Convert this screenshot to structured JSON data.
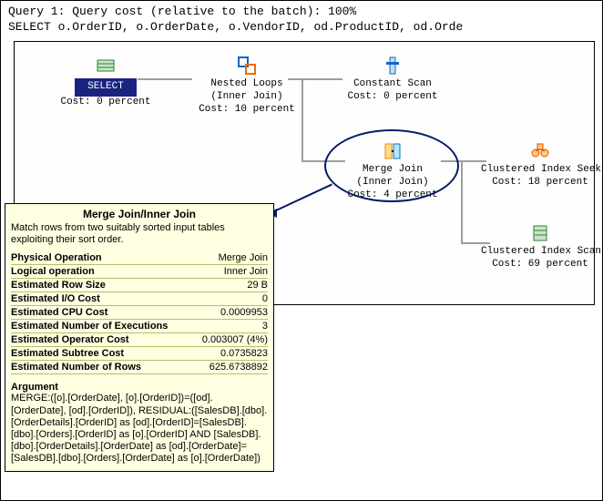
{
  "header": {
    "line1": "Query 1: Query cost (relative to the batch): 100%",
    "line2": "SELECT o.OrderID, o.OrderDate, o.VendorID, od.ProductID, od.Orde"
  },
  "plan": {
    "select": {
      "label": "SELECT",
      "cost": "Cost: 0 percent"
    },
    "nested_loops": {
      "label": "Nested Loops",
      "sub": "(Inner Join)",
      "cost": "Cost: 10 percent"
    },
    "constant_scan": {
      "label": "Constant Scan",
      "cost": "Cost: 0 percent"
    },
    "merge_join": {
      "label": "Merge Join",
      "sub": "(Inner Join)",
      "cost": "Cost: 4 percent"
    },
    "cis_seek": {
      "label": "Clustered Index Seek",
      "cost": "Cost: 18 percent"
    },
    "cis_scan": {
      "label": "Clustered Index Scan",
      "cost": "Cost: 69 percent"
    },
    "connector_color": "#9e9e9e",
    "ellipse_color": "#001a66"
  },
  "tooltip": {
    "title": "Merge Join/Inner Join",
    "description": "Match rows from two suitably sorted input tables exploiting their sort order.",
    "rows": [
      {
        "k": "Physical Operation",
        "v": "Merge Join"
      },
      {
        "k": "Logical operation",
        "v": "Inner Join"
      },
      {
        "k": "Estimated Row Size",
        "v": "29 B"
      },
      {
        "k": "Estimated I/O Cost",
        "v": "0"
      },
      {
        "k": "Estimated CPU Cost",
        "v": "0.0009953"
      },
      {
        "k": "Estimated Number of Executions",
        "v": "3"
      },
      {
        "k": "Estimated Operator Cost",
        "v": "0.003007 (4%)"
      },
      {
        "k": "Estimated Subtree Cost",
        "v": "0.0735823"
      },
      {
        "k": "Estimated Number of Rows",
        "v": "625.6738892"
      }
    ],
    "argument_label": "Argument",
    "argument": "MERGE:([o].[OrderDate], [o].[OrderID])=([od].[OrderDate], [od].[OrderID]), RESIDUAL:([SalesDB].[dbo].[OrderDetails].[OrderID] as [od].[OrderID]=[SalesDB].[dbo].[Orders].[OrderID] as [o].[OrderID] AND [SalesDB].[dbo].[OrderDetails].[OrderDate] as [od].[OrderDate]=[SalesDB].[dbo].[Orders].[OrderDate] as [o].[OrderDate])"
  },
  "colors": {
    "tooltip_bg": "#ffffe1",
    "select_bg": "#1a237e"
  }
}
